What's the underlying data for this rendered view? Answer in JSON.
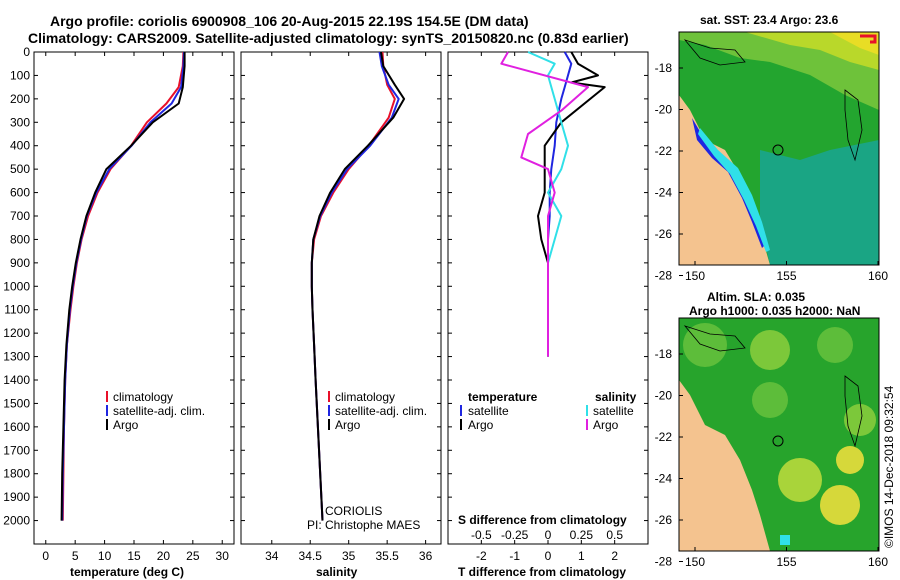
{
  "header": {
    "line1": "Argo profile: coriolis 6900908_106 20-Aug-2015 22.19S 154.5E (DM data)",
    "line2": "Climatology: CARS2009. Satellite-adjusted climatology: synTS_20150820.nc (0.83d earlier)"
  },
  "depth_ticks": [
    0,
    100,
    200,
    300,
    400,
    500,
    600,
    700,
    800,
    900,
    1000,
    1100,
    1200,
    1300,
    1400,
    1500,
    1600,
    1700,
    1800,
    1900,
    2000
  ],
  "depth_tick_labels": [
    "0",
    "100",
    "200",
    "300",
    "400",
    "500",
    "600",
    "700",
    "800",
    "900",
    "1000",
    "1100",
    "1200",
    "1300",
    "1400",
    "1500",
    "1600",
    "1700",
    "1800",
    "1900",
    "2000"
  ],
  "colors": {
    "clim": "#e8102a",
    "sat": "#1f26e0",
    "argo": "#000000",
    "sal_sat": "#30e0e8",
    "sal_argo": "#e020e0",
    "land": "#f4c38f",
    "sea_light": "#2ba62b",
    "sea_mid": "#1c9c3c"
  },
  "chart_data": [
    {
      "type": "line",
      "title": "",
      "xlabel": "temperature (deg C)",
      "ylabel": "",
      "xlim": [
        -2,
        32
      ],
      "ylim": [
        2100,
        0
      ],
      "xticks": [
        0,
        5,
        10,
        15,
        20,
        25,
        30
      ],
      "xtick_labels": [
        "0",
        "5",
        "10",
        "15",
        "20",
        "25",
        "30"
      ],
      "legend": [
        "climatology",
        "satellite-adj. clim.",
        "Argo"
      ],
      "series": [
        {
          "name": "climatology",
          "color": "#e8102a",
          "x": [
            23.4,
            23.3,
            22.6,
            20.5,
            17.2,
            14.5,
            11.0,
            8.8,
            7.2,
            6.1,
            5.3,
            4.7,
            4.2,
            3.6,
            3.3,
            3.1,
            3.0,
            2.9
          ],
          "y": [
            0,
            60,
            150,
            220,
            300,
            400,
            500,
            600,
            700,
            800,
            900,
            1000,
            1100,
            1250,
            1400,
            1600,
            1800,
            2000
          ]
        },
        {
          "name": "satellite-adj. clim.",
          "color": "#1f26e0",
          "x": [
            23.5,
            23.4,
            23.0,
            21.4,
            17.8,
            14.6,
            10.8,
            8.6,
            7.0,
            6.0,
            5.2,
            4.6,
            4.1,
            3.6,
            3.3,
            3.1,
            2.9,
            2.8
          ],
          "y": [
            0,
            60,
            150,
            220,
            300,
            400,
            500,
            600,
            700,
            800,
            900,
            1000,
            1100,
            1250,
            1400,
            1600,
            1800,
            2000
          ]
        },
        {
          "name": "Argo",
          "color": "#000000",
          "x": [
            23.6,
            23.6,
            23.3,
            22.6,
            18.2,
            14.5,
            10.3,
            8.4,
            6.9,
            5.9,
            5.1,
            4.5,
            4.0,
            3.5,
            3.2,
            3.0,
            2.8,
            2.7
          ],
          "y": [
            0,
            60,
            150,
            220,
            300,
            400,
            500,
            600,
            700,
            800,
            900,
            1000,
            1100,
            1250,
            1400,
            1600,
            1800,
            2000
          ]
        }
      ]
    },
    {
      "type": "line",
      "title": "",
      "xlabel": "salinity",
      "ylabel": "",
      "xlim": [
        33.6,
        36.2
      ],
      "ylim": [
        2100,
        0
      ],
      "xticks": [
        34,
        34.5,
        35,
        35.5,
        36
      ],
      "xtick_labels": [
        "34",
        "34.5",
        "35",
        "35.5",
        "36"
      ],
      "legend": [
        "climatology",
        "satellite-adj. clim.",
        "Argo"
      ],
      "notes": [
        "CORIOLIS",
        "PI: Christophe MAES"
      ],
      "series": [
        {
          "name": "climatology",
          "color": "#e8102a",
          "x": [
            35.44,
            35.45,
            35.5,
            35.6,
            35.52,
            35.26,
            35.0,
            34.8,
            34.64,
            34.55,
            34.52,
            34.52,
            34.53,
            34.55,
            34.57,
            34.6,
            34.63,
            34.66
          ],
          "y": [
            0,
            60,
            140,
            200,
            280,
            400,
            500,
            600,
            700,
            800,
            900,
            1000,
            1100,
            1250,
            1400,
            1600,
            1800,
            2000
          ]
        },
        {
          "name": "satellite-adj. clim.",
          "color": "#1f26e0",
          "x": [
            35.4,
            35.43,
            35.52,
            35.65,
            35.56,
            35.28,
            34.98,
            34.78,
            34.63,
            34.54,
            34.52,
            34.52,
            34.53,
            34.55,
            34.57,
            34.6,
            34.63,
            34.66
          ],
          "y": [
            0,
            60,
            140,
            200,
            280,
            400,
            500,
            600,
            700,
            800,
            900,
            1000,
            1100,
            1250,
            1400,
            1600,
            1800,
            2000
          ]
        },
        {
          "name": "Argo",
          "color": "#000000",
          "x": [
            35.42,
            35.45,
            35.6,
            35.72,
            35.58,
            35.25,
            34.95,
            34.76,
            34.62,
            34.54,
            34.52,
            34.52,
            34.53,
            34.55,
            34.57,
            34.6,
            34.63,
            34.66
          ],
          "y": [
            0,
            60,
            140,
            200,
            280,
            400,
            500,
            600,
            700,
            800,
            900,
            1000,
            1100,
            1250,
            1400,
            1600,
            1800,
            2000
          ]
        }
      ]
    },
    {
      "type": "line",
      "title": "",
      "xlabel": "T difference from climatology",
      "x2label": "S difference from climatology",
      "ylabel": "",
      "xlim": [
        -3,
        3
      ],
      "ylim": [
        2100,
        0
      ],
      "xticks": [
        -2,
        -1,
        0,
        1,
        2
      ],
      "xtick_labels": [
        "-2",
        "-1",
        "0",
        "1",
        "2"
      ],
      "x2ticks": [
        -0.5,
        -0.25,
        0,
        0.25,
        0.5
      ],
      "x2tick_labels": [
        "-0.5",
        "-0.25",
        "0",
        "0.25",
        "0.5"
      ],
      "legend_temperature": [
        "temperature",
        "satellite",
        "Argo"
      ],
      "legend_salinity": [
        "salinity",
        "satellite",
        "Argo"
      ],
      "series": [
        {
          "name": "satellite",
          "color": "#1f26e0",
          "x": [
            0.5,
            0.7,
            0.6,
            0.5,
            0.4,
            0.25,
            0.2,
            0.1,
            0.05,
            0.05,
            0.0,
            0.0,
            0.0,
            0.0,
            0.0,
            0.0
          ],
          "y": [
            0,
            50,
            100,
            150,
            200,
            300,
            400,
            500,
            600,
            700,
            800,
            900,
            1000,
            1100,
            1200,
            1300
          ]
        },
        {
          "name": "Argo",
          "color": "#000000",
          "x": [
            0.7,
            0.9,
            1.5,
            0.7,
            1.7,
            0.4,
            -0.1,
            -0.1,
            -0.1,
            -0.3,
            -0.2,
            0.0,
            0.0,
            0.0,
            0.0,
            0.0
          ],
          "y": [
            0,
            50,
            100,
            130,
            150,
            300,
            400,
            500,
            600,
            700,
            800,
            900,
            1000,
            1100,
            1200,
            1300
          ]
        },
        {
          "name": "satellite",
          "color": "#30e0e8",
          "x": [
            -0.15,
            0.05,
            0.0,
            0.05,
            0.1,
            0.15,
            0.1,
            0.0,
            0.1,
            0.05,
            0.0,
            0.0,
            0.0,
            0.0
          ],
          "y": [
            0,
            50,
            100,
            200,
            300,
            400,
            500,
            600,
            700,
            800,
            900,
            1000,
            1100,
            1200
          ]
        },
        {
          "name": "Argo",
          "color": "#e020e0",
          "x": [
            -0.3,
            -0.35,
            0.3,
            0.1,
            -0.15,
            -0.2,
            0.0,
            0.05,
            0.0,
            0.0,
            0.0,
            0.0,
            0.0,
            0.0
          ],
          "y": [
            0,
            50,
            150,
            250,
            350,
            450,
            500,
            600,
            700,
            800,
            900,
            1000,
            1100,
            1300
          ]
        }
      ]
    }
  ],
  "maps": {
    "sst": {
      "title": "sat. SST: 23.4 Argo: 23.6",
      "yticks": [
        "-18",
        "-20",
        "-22",
        "-24",
        "-26",
        "-28"
      ],
      "xticks": [
        "150",
        "155",
        "160"
      ]
    },
    "sla": {
      "title1": "Altim. SLA: 0.035",
      "title2": "Argo h1000: 0.035 h2000: NaN",
      "yticks": [
        "-18",
        "-20",
        "-22",
        "-24",
        "-26",
        "-28"
      ],
      "xticks": [
        "150",
        "155",
        "160"
      ]
    }
  },
  "footer": {
    "stamp": "©IMOS 14-Dec-2018 09:32:54"
  }
}
